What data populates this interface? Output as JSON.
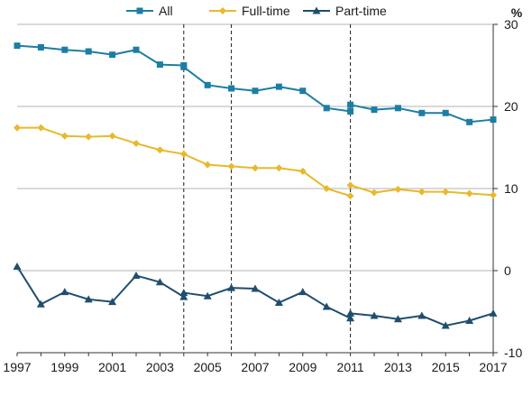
{
  "chart_data": {
    "type": "line",
    "title": "",
    "xlabel": "",
    "ylabel": "",
    "y_unit": "%",
    "y_axis_side": "right",
    "ylim": [
      -10,
      30
    ],
    "yticks": [
      -10,
      0,
      10,
      20,
      30
    ],
    "xlim": [
      1997,
      2017
    ],
    "xticks": [
      1997,
      1999,
      2001,
      2003,
      2005,
      2007,
      2009,
      2011,
      2013,
      2015,
      2017
    ],
    "grid": "horizontal",
    "legend": "top",
    "vlines": [
      2004,
      2006,
      2011
    ],
    "series": [
      {
        "name": "All",
        "color": "#1c7ea4",
        "marker": "square",
        "segments": [
          {
            "x": [
              1997,
              1998,
              1999,
              2000,
              2001,
              2002,
              2003,
              2004
            ],
            "y": [
              27.4,
              27.2,
              26.9,
              26.7,
              26.3,
              26.9,
              25.1,
              25.0
            ]
          },
          {
            "x": [
              2004,
              2005,
              2006,
              2007,
              2008,
              2009,
              2010,
              2011
            ],
            "y": [
              24.8,
              22.6,
              22.2,
              21.9,
              22.4,
              21.9,
              19.8,
              19.4
            ]
          },
          {
            "x": [
              2011,
              2012,
              2013,
              2014,
              2015,
              2016,
              2017
            ],
            "y": [
              20.2,
              19.6,
              19.8,
              19.2,
              19.2,
              18.1,
              18.4
            ]
          }
        ]
      },
      {
        "name": "Full-time",
        "color": "#e8b92b",
        "marker": "diamond",
        "segments": [
          {
            "x": [
              1997,
              1998,
              1999,
              2000,
              2001,
              2002,
              2003,
              2004,
              2005,
              2006,
              2007,
              2008,
              2009,
              2010,
              2011
            ],
            "y": [
              17.4,
              17.4,
              16.4,
              16.3,
              16.4,
              15.5,
              14.7,
              14.2,
              12.9,
              12.7,
              12.5,
              12.5,
              12.1,
              10.0,
              9.1
            ]
          },
          {
            "x": [
              2011,
              2012,
              2013,
              2014,
              2015,
              2016,
              2017
            ],
            "y": [
              10.4,
              9.5,
              9.9,
              9.6,
              9.6,
              9.4,
              9.2
            ]
          }
        ]
      },
      {
        "name": "Part-time",
        "color": "#1f4e6e",
        "marker": "triangle",
        "segments": [
          {
            "x": [
              1997,
              1998,
              1999,
              2000,
              2001,
              2002,
              2003,
              2004
            ],
            "y": [
              0.5,
              -4.1,
              -2.6,
              -3.5,
              -3.8,
              -0.6,
              -1.4,
              -3.2
            ]
          },
          {
            "x": [
              2004,
              2005,
              2006,
              2007,
              2008,
              2009,
              2010,
              2011
            ],
            "y": [
              -2.7,
              -3.1,
              -2.1,
              -2.2,
              -3.9,
              -2.6,
              -4.4,
              -5.8
            ]
          },
          {
            "x": [
              2011,
              2012,
              2013,
              2014,
              2015,
              2016,
              2017
            ],
            "y": [
              -5.2,
              -5.5,
              -5.9,
              -5.5,
              -6.7,
              -6.1,
              -5.2
            ]
          }
        ]
      }
    ]
  }
}
